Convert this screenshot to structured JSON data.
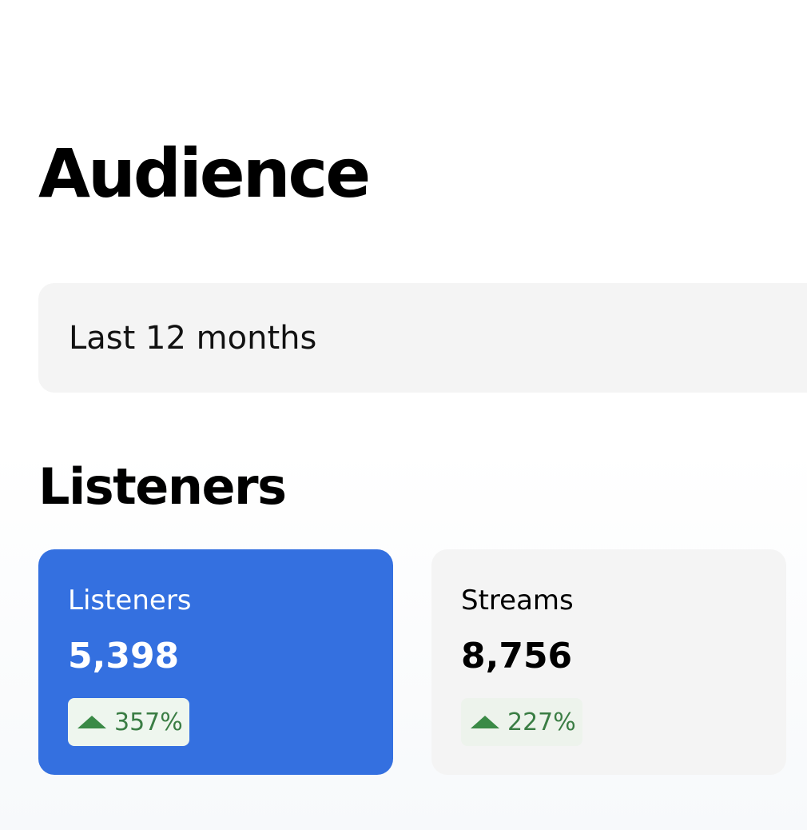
{
  "header": {
    "title": "Audience"
  },
  "filter": {
    "label": "Last 12 months"
  },
  "section": {
    "title": "Listeners"
  },
  "cards": [
    {
      "label": "Listeners",
      "value": "5,398",
      "change": "357%"
    },
    {
      "label": "Streams",
      "value": "8,756",
      "change": "227%"
    }
  ]
}
